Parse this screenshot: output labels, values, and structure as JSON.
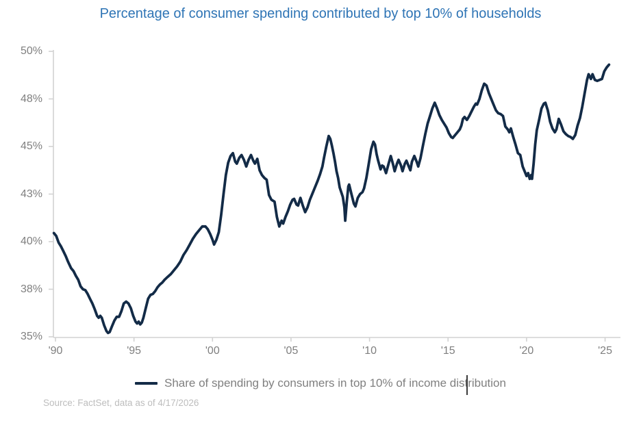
{
  "chart_data": {
    "type": "line",
    "title": "Percentage of consumer spending contributed by top 10% of households",
    "xlabel": "",
    "ylabel": "",
    "x_axis": {
      "range": [
        1989.9,
        2026.0
      ],
      "ticks": [
        {
          "label": "'90",
          "year": 1990
        },
        {
          "label": "'95",
          "year": 1995
        },
        {
          "label": "'00",
          "year": 2000
        },
        {
          "label": "'05",
          "year": 2005
        },
        {
          "label": "'10",
          "year": 2010
        },
        {
          "label": "'15",
          "year": 2015
        },
        {
          "label": "'20",
          "year": 2020
        },
        {
          "label": "'25",
          "year": 2025
        }
      ]
    },
    "y_axis": {
      "range": [
        35,
        50
      ],
      "unit": "%",
      "ticks": [
        {
          "label": "35%",
          "value": 35
        },
        {
          "label": "38%",
          "value": 37.5
        },
        {
          "label": "40%",
          "value": 40
        },
        {
          "label": "43%",
          "value": 42.5
        },
        {
          "label": "45%",
          "value": 45
        },
        {
          "label": "48%",
          "value": 47.5
        },
        {
          "label": "50%",
          "value": 50
        }
      ]
    },
    "grid": false,
    "legend": {
      "position": "bottom",
      "label": "Share of spending by consumers in top 10% of income distribution",
      "caret_visible": true
    },
    "source": "Source: FactSet, data as of 4/17/2026",
    "colors": {
      "line": "#132B47",
      "title": "#2E74B5",
      "axis": "#D2D2D2",
      "tick_text": "#7F7F7F",
      "legend_text": "#7F7F7F",
      "source_text": "#BDBDBD"
    },
    "series": [
      {
        "name": "Share of spending by consumers in top 10% of income distribution",
        "points": [
          [
            1989.9,
            40.45
          ],
          [
            1990.05,
            40.3
          ],
          [
            1990.2,
            39.95
          ],
          [
            1990.35,
            39.75
          ],
          [
            1990.5,
            39.5
          ],
          [
            1990.65,
            39.25
          ],
          [
            1990.8,
            38.95
          ],
          [
            1991.0,
            38.6
          ],
          [
            1991.15,
            38.45
          ],
          [
            1991.3,
            38.2
          ],
          [
            1991.45,
            38.0
          ],
          [
            1991.6,
            37.65
          ],
          [
            1991.75,
            37.5
          ],
          [
            1991.9,
            37.45
          ],
          [
            1992.05,
            37.25
          ],
          [
            1992.2,
            37.0
          ],
          [
            1992.35,
            36.75
          ],
          [
            1992.5,
            36.45
          ],
          [
            1992.65,
            36.1
          ],
          [
            1992.75,
            36.0
          ],
          [
            1992.85,
            36.1
          ],
          [
            1992.95,
            36.0
          ],
          [
            1993.1,
            35.6
          ],
          [
            1993.25,
            35.3
          ],
          [
            1993.35,
            35.2
          ],
          [
            1993.45,
            35.25
          ],
          [
            1993.6,
            35.55
          ],
          [
            1993.75,
            35.85
          ],
          [
            1993.9,
            36.05
          ],
          [
            1994.05,
            36.05
          ],
          [
            1994.2,
            36.35
          ],
          [
            1994.35,
            36.75
          ],
          [
            1994.5,
            36.85
          ],
          [
            1994.65,
            36.75
          ],
          [
            1994.8,
            36.5
          ],
          [
            1994.95,
            36.1
          ],
          [
            1995.1,
            35.8
          ],
          [
            1995.2,
            35.7
          ],
          [
            1995.3,
            35.8
          ],
          [
            1995.4,
            35.65
          ],
          [
            1995.5,
            35.75
          ],
          [
            1995.6,
            36.0
          ],
          [
            1995.75,
            36.5
          ],
          [
            1995.9,
            37.0
          ],
          [
            1996.05,
            37.2
          ],
          [
            1996.2,
            37.25
          ],
          [
            1996.35,
            37.4
          ],
          [
            1996.5,
            37.6
          ],
          [
            1996.65,
            37.75
          ],
          [
            1996.8,
            37.85
          ],
          [
            1996.95,
            38.0
          ],
          [
            1997.15,
            38.15
          ],
          [
            1997.35,
            38.3
          ],
          [
            1997.55,
            38.5
          ],
          [
            1997.75,
            38.7
          ],
          [
            1997.95,
            38.95
          ],
          [
            1998.15,
            39.3
          ],
          [
            1998.35,
            39.55
          ],
          [
            1998.55,
            39.85
          ],
          [
            1998.75,
            40.15
          ],
          [
            1998.95,
            40.4
          ],
          [
            1999.15,
            40.6
          ],
          [
            1999.35,
            40.8
          ],
          [
            1999.55,
            40.8
          ],
          [
            1999.7,
            40.65
          ],
          [
            1999.85,
            40.4
          ],
          [
            2000.0,
            40.1
          ],
          [
            2000.1,
            39.85
          ],
          [
            2000.25,
            40.1
          ],
          [
            2000.4,
            40.5
          ],
          [
            2000.55,
            41.4
          ],
          [
            2000.7,
            42.5
          ],
          [
            2000.85,
            43.5
          ],
          [
            2001.0,
            44.15
          ],
          [
            2001.15,
            44.5
          ],
          [
            2001.3,
            44.65
          ],
          [
            2001.45,
            44.2
          ],
          [
            2001.55,
            44.1
          ],
          [
            2001.7,
            44.4
          ],
          [
            2001.85,
            44.55
          ],
          [
            2002.0,
            44.3
          ],
          [
            2002.15,
            43.95
          ],
          [
            2002.3,
            44.3
          ],
          [
            2002.45,
            44.55
          ],
          [
            2002.6,
            44.25
          ],
          [
            2002.7,
            44.1
          ],
          [
            2002.85,
            44.35
          ],
          [
            2003.0,
            43.75
          ],
          [
            2003.15,
            43.5
          ],
          [
            2003.3,
            43.35
          ],
          [
            2003.45,
            43.25
          ],
          [
            2003.6,
            42.45
          ],
          [
            2003.75,
            42.2
          ],
          [
            2003.95,
            42.1
          ],
          [
            2004.1,
            41.3
          ],
          [
            2004.25,
            40.8
          ],
          [
            2004.4,
            41.1
          ],
          [
            2004.5,
            40.95
          ],
          [
            2004.65,
            41.3
          ],
          [
            2004.8,
            41.6
          ],
          [
            2004.95,
            41.95
          ],
          [
            2005.1,
            42.2
          ],
          [
            2005.2,
            42.25
          ],
          [
            2005.35,
            41.95
          ],
          [
            2005.45,
            41.9
          ],
          [
            2005.6,
            42.3
          ],
          [
            2005.75,
            41.9
          ],
          [
            2005.9,
            41.55
          ],
          [
            2006.05,
            41.8
          ],
          [
            2006.2,
            42.2
          ],
          [
            2006.35,
            42.5
          ],
          [
            2006.5,
            42.8
          ],
          [
            2006.7,
            43.2
          ],
          [
            2006.85,
            43.55
          ],
          [
            2007.0,
            43.95
          ],
          [
            2007.1,
            44.4
          ],
          [
            2007.25,
            45.0
          ],
          [
            2007.4,
            45.55
          ],
          [
            2007.5,
            45.4
          ],
          [
            2007.6,
            45.05
          ],
          [
            2007.7,
            44.65
          ],
          [
            2007.8,
            44.2
          ],
          [
            2007.9,
            43.7
          ],
          [
            2008.0,
            43.35
          ],
          [
            2008.1,
            42.85
          ],
          [
            2008.2,
            42.6
          ],
          [
            2008.3,
            42.35
          ],
          [
            2008.4,
            41.8
          ],
          [
            2008.45,
            41.1
          ],
          [
            2008.55,
            42.1
          ],
          [
            2008.65,
            42.9
          ],
          [
            2008.7,
            43.0
          ],
          [
            2008.85,
            42.5
          ],
          [
            2009.0,
            42.0
          ],
          [
            2009.1,
            41.85
          ],
          [
            2009.25,
            42.3
          ],
          [
            2009.4,
            42.5
          ],
          [
            2009.55,
            42.6
          ],
          [
            2009.65,
            42.8
          ],
          [
            2009.8,
            43.35
          ],
          [
            2009.95,
            44.1
          ],
          [
            2010.1,
            44.85
          ],
          [
            2010.25,
            45.25
          ],
          [
            2010.35,
            45.1
          ],
          [
            2010.45,
            44.6
          ],
          [
            2010.55,
            44.25
          ],
          [
            2010.7,
            43.8
          ],
          [
            2010.8,
            44.0
          ],
          [
            2010.9,
            43.95
          ],
          [
            2011.05,
            43.6
          ],
          [
            2011.2,
            44.05
          ],
          [
            2011.35,
            44.5
          ],
          [
            2011.5,
            44.05
          ],
          [
            2011.6,
            43.7
          ],
          [
            2011.75,
            44.1
          ],
          [
            2011.85,
            44.3
          ],
          [
            2012.0,
            44.0
          ],
          [
            2012.1,
            43.7
          ],
          [
            2012.25,
            44.1
          ],
          [
            2012.35,
            44.25
          ],
          [
            2012.5,
            43.95
          ],
          [
            2012.6,
            43.75
          ],
          [
            2012.7,
            44.2
          ],
          [
            2012.85,
            44.5
          ],
          [
            2013.0,
            44.2
          ],
          [
            2013.1,
            43.95
          ],
          [
            2013.25,
            44.4
          ],
          [
            2013.4,
            45.05
          ],
          [
            2013.55,
            45.65
          ],
          [
            2013.7,
            46.2
          ],
          [
            2013.85,
            46.6
          ],
          [
            2014.0,
            47.0
          ],
          [
            2014.15,
            47.3
          ],
          [
            2014.3,
            47.0
          ],
          [
            2014.45,
            46.65
          ],
          [
            2014.6,
            46.4
          ],
          [
            2014.75,
            46.2
          ],
          [
            2014.9,
            46.0
          ],
          [
            2015.05,
            45.7
          ],
          [
            2015.2,
            45.5
          ],
          [
            2015.3,
            45.45
          ],
          [
            2015.45,
            45.6
          ],
          [
            2015.6,
            45.75
          ],
          [
            2015.75,
            45.9
          ],
          [
            2015.85,
            46.1
          ],
          [
            2015.95,
            46.45
          ],
          [
            2016.05,
            46.55
          ],
          [
            2016.2,
            46.4
          ],
          [
            2016.35,
            46.6
          ],
          [
            2016.5,
            46.85
          ],
          [
            2016.65,
            47.1
          ],
          [
            2016.77,
            47.25
          ],
          [
            2016.85,
            47.2
          ],
          [
            2017.0,
            47.5
          ],
          [
            2017.15,
            47.95
          ],
          [
            2017.3,
            48.3
          ],
          [
            2017.45,
            48.2
          ],
          [
            2017.6,
            47.8
          ],
          [
            2017.75,
            47.5
          ],
          [
            2017.9,
            47.2
          ],
          [
            2018.05,
            46.9
          ],
          [
            2018.2,
            46.75
          ],
          [
            2018.35,
            46.7
          ],
          [
            2018.5,
            46.6
          ],
          [
            2018.65,
            46.05
          ],
          [
            2018.8,
            45.9
          ],
          [
            2018.9,
            45.75
          ],
          [
            2019.0,
            45.95
          ],
          [
            2019.15,
            45.5
          ],
          [
            2019.3,
            45.1
          ],
          [
            2019.45,
            44.65
          ],
          [
            2019.6,
            44.55
          ],
          [
            2019.75,
            43.95
          ],
          [
            2019.9,
            43.65
          ],
          [
            2020.0,
            43.45
          ],
          [
            2020.1,
            43.6
          ],
          [
            2020.2,
            43.3
          ],
          [
            2020.3,
            43.5
          ],
          [
            2020.35,
            43.3
          ],
          [
            2020.45,
            44.1
          ],
          [
            2020.55,
            45.1
          ],
          [
            2020.65,
            45.85
          ],
          [
            2020.8,
            46.4
          ],
          [
            2020.95,
            47.0
          ],
          [
            2021.1,
            47.25
          ],
          [
            2021.2,
            47.3
          ],
          [
            2021.35,
            46.9
          ],
          [
            2021.5,
            46.3
          ],
          [
            2021.65,
            45.95
          ],
          [
            2021.8,
            45.75
          ],
          [
            2021.9,
            45.9
          ],
          [
            2022.05,
            46.45
          ],
          [
            2022.2,
            46.15
          ],
          [
            2022.35,
            45.8
          ],
          [
            2022.5,
            45.65
          ],
          [
            2022.65,
            45.55
          ],
          [
            2022.8,
            45.5
          ],
          [
            2022.95,
            45.4
          ],
          [
            2023.1,
            45.6
          ],
          [
            2023.25,
            46.1
          ],
          [
            2023.4,
            46.5
          ],
          [
            2023.55,
            47.1
          ],
          [
            2023.7,
            47.8
          ],
          [
            2023.85,
            48.5
          ],
          [
            2023.95,
            48.8
          ],
          [
            2024.1,
            48.55
          ],
          [
            2024.2,
            48.8
          ],
          [
            2024.35,
            48.5
          ],
          [
            2024.5,
            48.45
          ],
          [
            2024.65,
            48.5
          ],
          [
            2024.8,
            48.55
          ],
          [
            2024.95,
            48.95
          ],
          [
            2025.1,
            49.15
          ],
          [
            2025.25,
            49.3
          ]
        ]
      }
    ]
  }
}
